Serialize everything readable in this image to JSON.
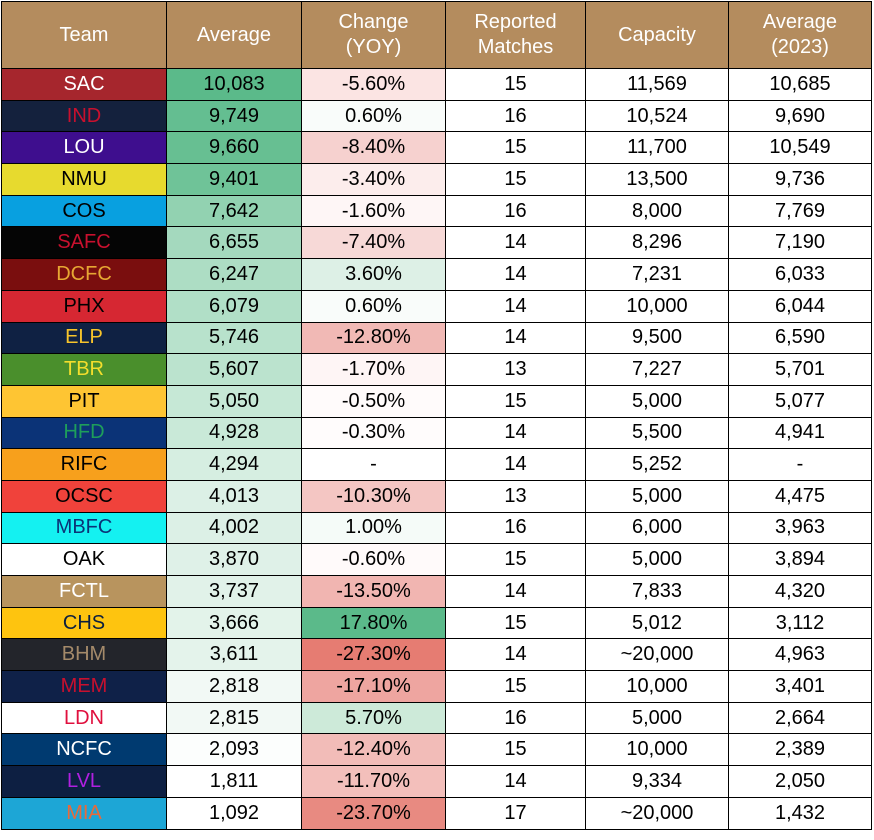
{
  "headers": {
    "team": "Team",
    "average": "Average",
    "change": "Change\n(YOY)",
    "reported": "Reported\nMatches",
    "capacity": "Capacity",
    "average_2023": "Average\n(2023)"
  },
  "rows": [
    {
      "team": "SAC",
      "team_bg": "#A6262D",
      "team_fg": "#FFFFFF",
      "average": "10,083",
      "avg_bg": "#5BBA8A",
      "change": "-5.60%",
      "chg_bg": "#FBE4E3",
      "reported": "15",
      "capacity": "11,569",
      "average_2023": "10,685"
    },
    {
      "team": "IND",
      "team_bg": "#14213D",
      "team_fg": "#C8102E",
      "average": "9,749",
      "avg_bg": "#64BE91",
      "change": "0.60%",
      "chg_bg": "#F9FCFA",
      "reported": "16",
      "capacity": "10,524",
      "average_2023": "9,690"
    },
    {
      "team": "LOU",
      "team_bg": "#3E0E8E",
      "team_fg": "#FFFFFF",
      "average": "9,660",
      "avg_bg": "#67BF92",
      "change": "-8.40%",
      "chg_bg": "#F6D1CF",
      "reported": "15",
      "capacity": "11,700",
      "average_2023": "10,549"
    },
    {
      "team": "NMU",
      "team_bg": "#E7DA2E",
      "team_fg": "#000000",
      "average": "9,401",
      "avg_bg": "#6FC398",
      "change": "-3.40%",
      "chg_bg": "#FCEDEC",
      "reported": "15",
      "capacity": "13,500",
      "average_2023": "9,736"
    },
    {
      "team": "COS",
      "team_bg": "#08A0E0",
      "team_fg": "#000000",
      "average": "7,642",
      "avg_bg": "#92D2B1",
      "change": "-1.60%",
      "chg_bg": "#FEF6F6",
      "reported": "16",
      "capacity": "8,000",
      "average_2023": "7,769"
    },
    {
      "team": "SAFC",
      "team_bg": "#050505",
      "team_fg": "#C8102E",
      "average": "6,655",
      "avg_bg": "#A4D9BE",
      "change": "-7.40%",
      "chg_bg": "#F7D9D7",
      "reported": "14",
      "capacity": "8,296",
      "average_2023": "7,190"
    },
    {
      "team": "DCFC",
      "team_bg": "#7A0E0E",
      "team_fg": "#E7A733",
      "average": "6,247",
      "avg_bg": "#ADDDC4",
      "change": "3.60%",
      "chg_bg": "#DDF0E6",
      "reported": "14",
      "capacity": "7,231",
      "average_2023": "6,033"
    },
    {
      "team": "PHX",
      "team_bg": "#D62732",
      "team_fg": "#000000",
      "average": "6,079",
      "avg_bg": "#B1DFC7",
      "change": "0.60%",
      "chg_bg": "#F9FCFA",
      "reported": "14",
      "capacity": "10,000",
      "average_2023": "6,044"
    },
    {
      "team": "ELP",
      "team_bg": "#0F2143",
      "team_fg": "#F7C42B",
      "average": "5,746",
      "avg_bg": "#B8E2CC",
      "change": "-12.80%",
      "chg_bg": "#F1B9B5",
      "reported": "14",
      "capacity": "9,500",
      "average_2023": "6,590"
    },
    {
      "team": "TBR",
      "team_bg": "#4A8F2C",
      "team_fg": "#F3DE2C",
      "average": "5,607",
      "avg_bg": "#BBE3CE",
      "change": "-1.70%",
      "chg_bg": "#FEF5F5",
      "reported": "13",
      "capacity": "7,227",
      "average_2023": "5,701"
    },
    {
      "team": "PIT",
      "team_bg": "#FEC533",
      "team_fg": "#000000",
      "average": "5,050",
      "avg_bg": "#C6E8D6",
      "change": "-0.50%",
      "chg_bg": "#FFFBFB",
      "reported": "15",
      "capacity": "5,000",
      "average_2023": "5,077"
    },
    {
      "team": "HFD",
      "team_bg": "#0B3377",
      "team_fg": "#1E9E5B",
      "average": "4,928",
      "avg_bg": "#C9E9D8",
      "change": "-0.30%",
      "chg_bg": "#FFFCFC",
      "reported": "14",
      "capacity": "5,500",
      "average_2023": "4,941"
    },
    {
      "team": "RIFC",
      "team_bg": "#F7A01C",
      "team_fg": "#000000",
      "average": "4,294",
      "avg_bg": "#D6EEE1",
      "change": "-",
      "chg_bg": "#FFFFFF",
      "reported": "14",
      "capacity": "5,252",
      "average_2023": "-"
    },
    {
      "team": "OCSC",
      "team_bg": "#F0423B",
      "team_fg": "#000000",
      "average": "4,013",
      "avg_bg": "#DCF0E6",
      "change": "-10.30%",
      "chg_bg": "#F4C6C3",
      "reported": "13",
      "capacity": "5,000",
      "average_2023": "4,475"
    },
    {
      "team": "MBFC",
      "team_bg": "#14F1F1",
      "team_fg": "#0B3377",
      "average": "4,002",
      "avg_bg": "#DCF0E6",
      "change": "1.00%",
      "chg_bg": "#F5FBF8",
      "reported": "16",
      "capacity": "6,000",
      "average_2023": "3,963"
    },
    {
      "team": "OAK",
      "team_bg": "#FFFFFF",
      "team_fg": "#000000",
      "average": "3,870",
      "avg_bg": "#DFF1E8",
      "change": "-0.60%",
      "chg_bg": "#FFFAFA",
      "reported": "15",
      "capacity": "5,000",
      "average_2023": "3,894"
    },
    {
      "team": "FCTL",
      "team_bg": "#B8945E",
      "team_fg": "#FFFFFF",
      "average": "3,737",
      "avg_bg": "#E1F2E9",
      "change": "-13.50%",
      "chg_bg": "#F1B5B1",
      "reported": "14",
      "capacity": "7,833",
      "average_2023": "4,320"
    },
    {
      "team": "CHS",
      "team_bg": "#FEC40F",
      "team_fg": "#0B1F3F",
      "average": "3,666",
      "avg_bg": "#E3F3EA",
      "change": "17.80%",
      "chg_bg": "#5BBA8A",
      "reported": "15",
      "capacity": "5,012",
      "average_2023": "3,112"
    },
    {
      "team": "BHM",
      "team_bg": "#23252B",
      "team_fg": "#A48A6A",
      "average": "3,611",
      "avg_bg": "#E4F3EB",
      "change": "-27.30%",
      "chg_bg": "#E67C72",
      "reported": "14",
      "capacity": "~20,000",
      "average_2023": "4,963"
    },
    {
      "team": "MEM",
      "team_bg": "#0F2148",
      "team_fg": "#C8102E",
      "average": "2,818",
      "avg_bg": "#F2F9F5",
      "change": "-17.10%",
      "chg_bg": "#EEA5A0",
      "reported": "15",
      "capacity": "10,000",
      "average_2023": "3,401"
    },
    {
      "team": "LDN",
      "team_bg": "#FFFFFF",
      "team_fg": "#E0103E",
      "average": "2,815",
      "avg_bg": "#F2F9F5",
      "change": "5.70%",
      "chg_bg": "#CDEAD9",
      "reported": "16",
      "capacity": "5,000",
      "average_2023": "2,664"
    },
    {
      "team": "NCFC",
      "team_bg": "#003A70",
      "team_fg": "#FFFFFF",
      "average": "2,093",
      "avg_bg": "#FCFEFD",
      "change": "-12.40%",
      "chg_bg": "#F2BCB8",
      "reported": "15",
      "capacity": "10,000",
      "average_2023": "2,389"
    },
    {
      "team": "LVL",
      "team_bg": "#0D1F42",
      "team_fg": "#B020E0",
      "average": "1,811",
      "avg_bg": "#FFFFFF",
      "change": "-11.70%",
      "chg_bg": "#F3BFBB",
      "reported": "14",
      "capacity": "9,334",
      "average_2023": "2,050"
    },
    {
      "team": "MIA",
      "team_bg": "#1DA6D6",
      "team_fg": "#E96A3A",
      "average": "1,092",
      "avg_bg": "#FFFFFF",
      "change": "-23.70%",
      "chg_bg": "#E88A81",
      "reported": "17",
      "capacity": "~20,000",
      "average_2023": "1,432"
    }
  ]
}
